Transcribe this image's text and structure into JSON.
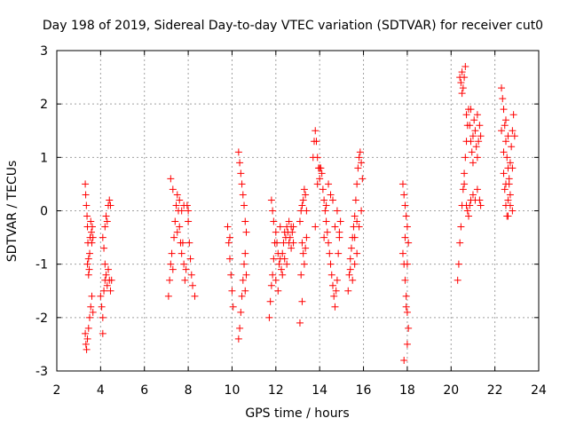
{
  "chart_data": {
    "type": "scatter",
    "title": "Day 198 of 2019, Sidereal Day-to-day VTEC variation (SDTVAR) for receiver cut0",
    "xlabel": "GPS time / hours",
    "ylabel": "SDTVAR / TECUs",
    "xlim": [
      2,
      24
    ],
    "ylim": [
      -3,
      3
    ],
    "x_ticks": [
      2,
      4,
      6,
      8,
      10,
      12,
      14,
      16,
      18,
      20,
      22,
      24
    ],
    "y_ticks": [
      -3,
      -2,
      -1,
      0,
      1,
      2,
      3
    ],
    "grid": true,
    "marker": "+",
    "color": "#ff0000",
    "series": [
      {
        "name": "SDTVAR",
        "points": [
          [
            3.3,
            0.5
          ],
          [
            3.32,
            0.3
          ],
          [
            3.35,
            0.1
          ],
          [
            3.38,
            -0.1
          ],
          [
            3.4,
            -0.3
          ],
          [
            3.42,
            -0.6
          ],
          [
            3.45,
            -0.9
          ],
          [
            3.48,
            -1.1
          ],
          [
            3.5,
            -0.8
          ],
          [
            3.52,
            -0.5
          ],
          [
            3.55,
            -0.2
          ],
          [
            3.58,
            -0.4
          ],
          [
            3.6,
            -0.6
          ],
          [
            3.62,
            -0.3
          ],
          [
            3.65,
            -0.5
          ],
          [
            3.3,
            -2.3
          ],
          [
            3.33,
            -2.5
          ],
          [
            3.36,
            -2.6
          ],
          [
            3.4,
            -2.4
          ],
          [
            3.45,
            -2.2
          ],
          [
            3.5,
            -2.0
          ],
          [
            3.55,
            -1.8
          ],
          [
            3.6,
            -1.6
          ],
          [
            3.65,
            -1.9
          ],
          [
            3.4,
            -1.0
          ],
          [
            3.45,
            -1.2
          ],
          [
            4.0,
            -1.6
          ],
          [
            4.05,
            -1.8
          ],
          [
            4.1,
            -2.0
          ],
          [
            4.15,
            -1.5
          ],
          [
            4.2,
            -1.3
          ],
          [
            4.25,
            -1.2
          ],
          [
            4.3,
            -1.4
          ],
          [
            4.35,
            -1.1
          ],
          [
            4.4,
            -1.3
          ],
          [
            4.45,
            -1.5
          ],
          [
            4.5,
            -1.3
          ],
          [
            4.1,
            -0.5
          ],
          [
            4.15,
            -0.7
          ],
          [
            4.2,
            -0.3
          ],
          [
            4.25,
            -0.1
          ],
          [
            4.3,
            -0.2
          ],
          [
            4.35,
            0.1
          ],
          [
            4.4,
            0.2
          ],
          [
            4.45,
            0.1
          ],
          [
            4.1,
            -2.3
          ],
          [
            4.2,
            -1.0
          ],
          [
            7.1,
            -1.6
          ],
          [
            7.15,
            -1.3
          ],
          [
            7.2,
            -1.0
          ],
          [
            7.25,
            -0.8
          ],
          [
            7.3,
            -1.1
          ],
          [
            7.35,
            -0.5
          ],
          [
            7.4,
            -0.2
          ],
          [
            7.45,
            0.1
          ],
          [
            7.5,
            0.3
          ],
          [
            7.55,
            0.0
          ],
          [
            7.6,
            -0.3
          ],
          [
            7.65,
            -0.6
          ],
          [
            7.7,
            -0.8
          ],
          [
            7.75,
            -0.6
          ],
          [
            7.8,
            -1.0
          ],
          [
            7.85,
            -1.3
          ],
          [
            7.9,
            -1.1
          ],
          [
            7.95,
            0.1
          ],
          [
            8.0,
            -0.2
          ],
          [
            8.05,
            -0.6
          ],
          [
            8.1,
            -0.9
          ],
          [
            8.15,
            -1.2
          ],
          [
            8.2,
            -1.4
          ],
          [
            8.3,
            -1.6
          ],
          [
            7.2,
            0.6
          ],
          [
            7.3,
            0.4
          ],
          [
            7.5,
            -0.4
          ],
          [
            7.6,
            0.2
          ],
          [
            7.7,
            0.0
          ],
          [
            7.8,
            0.1
          ],
          [
            8.0,
            0.0
          ],
          [
            9.8,
            -0.3
          ],
          [
            9.85,
            -0.6
          ],
          [
            9.9,
            -0.9
          ],
          [
            9.95,
            -1.2
          ],
          [
            10.0,
            -1.5
          ],
          [
            10.05,
            -1.8
          ],
          [
            9.9,
            -0.5
          ],
          [
            10.3,
            1.1
          ],
          [
            10.35,
            0.9
          ],
          [
            10.4,
            0.7
          ],
          [
            10.45,
            0.5
          ],
          [
            10.5,
            0.3
          ],
          [
            10.55,
            0.1
          ],
          [
            10.6,
            -0.2
          ],
          [
            10.65,
            -0.4
          ],
          [
            10.6,
            -0.8
          ],
          [
            10.55,
            -1.0
          ],
          [
            10.5,
            -1.3
          ],
          [
            10.45,
            -1.6
          ],
          [
            10.4,
            -1.9
          ],
          [
            10.35,
            -2.2
          ],
          [
            10.3,
            -2.4
          ],
          [
            10.6,
            -1.5
          ],
          [
            10.65,
            -1.2
          ],
          [
            11.7,
            -2.0
          ],
          [
            11.75,
            -1.7
          ],
          [
            11.8,
            -1.4
          ],
          [
            11.85,
            -1.2
          ],
          [
            11.9,
            -0.9
          ],
          [
            11.95,
            -0.6
          ],
          [
            12.0,
            -0.4
          ],
          [
            12.05,
            -0.6
          ],
          [
            12.1,
            -0.8
          ],
          [
            12.15,
            -1.0
          ],
          [
            12.2,
            -0.9
          ],
          [
            12.25,
            -1.1
          ],
          [
            12.3,
            -0.8
          ],
          [
            12.35,
            -0.6
          ],
          [
            12.4,
            -0.9
          ],
          [
            12.45,
            -0.5
          ],
          [
            12.5,
            -0.3
          ],
          [
            12.55,
            -0.4
          ],
          [
            12.6,
            -0.2
          ],
          [
            12.65,
            -0.5
          ],
          [
            12.7,
            -0.7
          ],
          [
            12.75,
            -0.4
          ],
          [
            12.8,
            -0.3
          ],
          [
            11.8,
            0.2
          ],
          [
            11.85,
            0.0
          ],
          [
            11.9,
            -0.2
          ],
          [
            12.0,
            -1.3
          ],
          [
            12.1,
            -1.5
          ],
          [
            12.2,
            -0.3
          ],
          [
            12.3,
            -1.2
          ],
          [
            12.4,
            -0.4
          ],
          [
            12.5,
            -1.0
          ],
          [
            12.6,
            -0.6
          ],
          [
            12.7,
            -0.3
          ],
          [
            12.8,
            -0.6
          ],
          [
            13.1,
            -0.2
          ],
          [
            13.15,
            0.0
          ],
          [
            13.2,
            0.1
          ],
          [
            13.25,
            0.2
          ],
          [
            13.3,
            0.4
          ],
          [
            13.35,
            0.3
          ],
          [
            13.4,
            0.0
          ],
          [
            13.2,
            -0.6
          ],
          [
            13.25,
            -0.8
          ],
          [
            13.3,
            -1.0
          ],
          [
            13.35,
            -0.7
          ],
          [
            13.4,
            -0.5
          ],
          [
            13.2,
            -1.7
          ],
          [
            13.1,
            -2.1
          ],
          [
            13.15,
            -1.2
          ],
          [
            13.7,
            1.0
          ],
          [
            13.75,
            1.3
          ],
          [
            13.8,
            1.5
          ],
          [
            13.85,
            1.3
          ],
          [
            13.9,
            1.0
          ],
          [
            13.95,
            0.8
          ],
          [
            14.0,
            0.6
          ],
          [
            14.05,
            0.8
          ],
          [
            14.1,
            0.7
          ],
          [
            14.15,
            0.4
          ],
          [
            14.2,
            0.2
          ],
          [
            14.25,
            0.0
          ],
          [
            14.3,
            -0.2
          ],
          [
            14.35,
            -0.4
          ],
          [
            14.4,
            -0.6
          ],
          [
            14.45,
            -0.8
          ],
          [
            14.5,
            -1.0
          ],
          [
            14.55,
            -1.2
          ],
          [
            14.6,
            -1.4
          ],
          [
            14.65,
            -1.6
          ],
          [
            14.7,
            -1.8
          ],
          [
            14.75,
            -1.5
          ],
          [
            14.8,
            -1.3
          ],
          [
            14.85,
            -0.8
          ],
          [
            14.9,
            -0.5
          ],
          [
            14.95,
            -0.2
          ],
          [
            13.8,
            -0.3
          ],
          [
            13.9,
            0.5
          ],
          [
            14.0,
            0.8
          ],
          [
            14.2,
            -0.5
          ],
          [
            14.3,
            0.1
          ],
          [
            14.4,
            0.5
          ],
          [
            14.5,
            0.3
          ],
          [
            14.6,
            0.2
          ],
          [
            14.7,
            -0.3
          ],
          [
            14.8,
            0.0
          ],
          [
            14.9,
            -0.4
          ],
          [
            15.3,
            -1.5
          ],
          [
            15.35,
            -1.2
          ],
          [
            15.4,
            -0.9
          ],
          [
            15.45,
            -0.7
          ],
          [
            15.5,
            -0.5
          ],
          [
            15.55,
            -0.3
          ],
          [
            15.6,
            -0.1
          ],
          [
            15.65,
            0.2
          ],
          [
            15.7,
            0.5
          ],
          [
            15.75,
            0.8
          ],
          [
            15.8,
            1.0
          ],
          [
            15.85,
            1.1
          ],
          [
            15.9,
            0.9
          ],
          [
            15.95,
            0.6
          ],
          [
            15.4,
            -1.1
          ],
          [
            15.5,
            -1.3
          ],
          [
            15.6,
            -1.0
          ],
          [
            15.7,
            -0.8
          ],
          [
            15.8,
            -0.3
          ],
          [
            15.9,
            0.0
          ],
          [
            15.6,
            -0.5
          ],
          [
            15.7,
            -0.2
          ],
          [
            17.8,
            0.5
          ],
          [
            17.85,
            0.3
          ],
          [
            17.9,
            0.1
          ],
          [
            17.95,
            -0.1
          ],
          [
            18.0,
            -0.3
          ],
          [
            18.05,
            -0.6
          ],
          [
            17.8,
            -0.8
          ],
          [
            17.85,
            -1.0
          ],
          [
            17.9,
            -1.3
          ],
          [
            17.95,
            -1.6
          ],
          [
            18.0,
            -1.9
          ],
          [
            18.05,
            -2.2
          ],
          [
            18.0,
            -2.5
          ],
          [
            17.85,
            -2.8
          ],
          [
            17.9,
            -0.5
          ],
          [
            18.0,
            -1.0
          ],
          [
            17.95,
            -1.8
          ],
          [
            20.3,
            -1.3
          ],
          [
            20.35,
            -1.0
          ],
          [
            20.4,
            -0.6
          ],
          [
            20.45,
            -0.3
          ],
          [
            20.5,
            0.1
          ],
          [
            20.55,
            0.4
          ],
          [
            20.6,
            0.7
          ],
          [
            20.65,
            1.0
          ],
          [
            20.7,
            1.3
          ],
          [
            20.75,
            1.6
          ],
          [
            20.8,
            1.9
          ],
          [
            20.85,
            1.6
          ],
          [
            20.9,
            1.3
          ],
          [
            20.95,
            1.1
          ],
          [
            21.0,
            1.4
          ],
          [
            21.05,
            1.7
          ],
          [
            21.1,
            1.5
          ],
          [
            21.15,
            1.2
          ],
          [
            21.2,
            1.0
          ],
          [
            21.25,
            1.3
          ],
          [
            21.3,
            1.6
          ],
          [
            21.35,
            1.4
          ],
          [
            20.4,
            2.5
          ],
          [
            20.45,
            2.4
          ],
          [
            20.5,
            2.6
          ],
          [
            20.55,
            2.3
          ],
          [
            20.6,
            2.5
          ],
          [
            20.65,
            2.7
          ],
          [
            20.5,
            2.2
          ],
          [
            20.7,
            0.1
          ],
          [
            20.75,
            0.0
          ],
          [
            20.8,
            -0.1
          ],
          [
            20.85,
            0.1
          ],
          [
            20.9,
            0.2
          ],
          [
            21.0,
            0.3
          ],
          [
            21.1,
            0.2
          ],
          [
            21.2,
            0.4
          ],
          [
            21.3,
            0.2
          ],
          [
            21.35,
            0.1
          ],
          [
            20.6,
            0.5
          ],
          [
            20.7,
            1.8
          ],
          [
            20.9,
            1.9
          ],
          [
            21.0,
            0.9
          ],
          [
            21.2,
            1.8
          ],
          [
            22.3,
            2.3
          ],
          [
            22.35,
            2.1
          ],
          [
            22.4,
            1.9
          ],
          [
            22.45,
            1.6
          ],
          [
            22.5,
            1.3
          ],
          [
            22.55,
            1.0
          ],
          [
            22.6,
            0.8
          ],
          [
            22.65,
            0.5
          ],
          [
            22.7,
            0.3
          ],
          [
            22.4,
            0.7
          ],
          [
            22.45,
            0.4
          ],
          [
            22.5,
            0.1
          ],
          [
            22.55,
            -0.1
          ],
          [
            22.6,
            0.2
          ],
          [
            22.65,
            0.6
          ],
          [
            22.7,
            0.9
          ],
          [
            22.75,
            1.2
          ],
          [
            22.8,
            1.5
          ],
          [
            22.85,
            1.8
          ],
          [
            22.9,
            1.4
          ],
          [
            22.4,
            1.1
          ],
          [
            22.5,
            1.7
          ],
          [
            22.6,
            1.4
          ],
          [
            22.7,
            0.1
          ],
          [
            22.8,
            0.0
          ],
          [
            22.5,
            0.5
          ],
          [
            22.6,
            -0.1
          ],
          [
            22.3,
            1.5
          ],
          [
            22.8,
            0.8
          ]
        ]
      }
    ]
  }
}
